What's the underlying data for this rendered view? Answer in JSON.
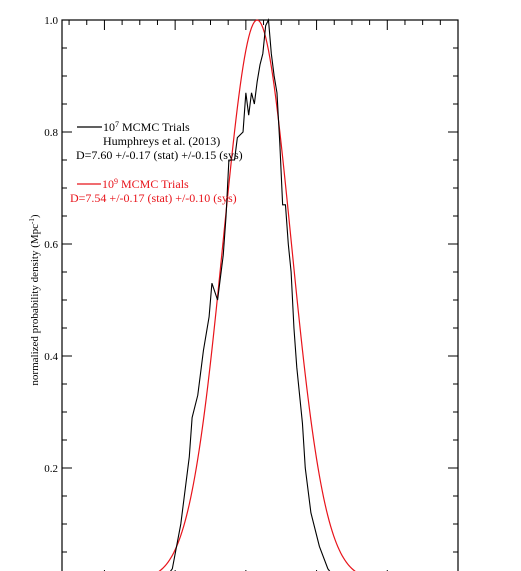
{
  "chart_data": {
    "type": "line",
    "title": "",
    "xlabel": "",
    "ylabel": "normalized probability density (Mpc",
    "ylabel_sup": "-1",
    "ylabel_close": ")",
    "ylim": [
      0,
      1.0
    ],
    "xlim": [
      6.85,
      8.25
    ],
    "y_ticks": [
      "0.2",
      "0.4",
      "0.6",
      "0.8",
      "1.0"
    ],
    "y_tick_values": [
      0.2,
      0.4,
      0.6,
      0.8,
      1.0
    ],
    "grid": false,
    "legend_position": "upper-left",
    "series": [
      {
        "name": "10^7 MCMC Trials",
        "color": "#000000",
        "x": [
          7.21,
          7.24,
          7.27,
          7.3,
          7.31,
          7.33,
          7.35,
          7.37,
          7.38,
          7.4,
          7.42,
          7.43,
          7.44,
          7.46,
          7.47,
          7.49,
          7.5,
          7.51,
          7.52,
          7.53,
          7.54,
          7.55,
          7.56,
          7.57,
          7.58,
          7.59,
          7.6,
          7.61,
          7.62,
          7.63,
          7.64,
          7.65,
          7.66,
          7.67,
          7.68,
          7.7,
          7.71,
          7.73,
          7.76,
          7.79,
          7.82,
          7.85,
          7.88,
          7.91
        ],
        "values": [
          0.0,
          0.02,
          0.1,
          0.22,
          0.29,
          0.33,
          0.41,
          0.47,
          0.53,
          0.5,
          0.58,
          0.65,
          0.75,
          0.75,
          0.79,
          0.8,
          0.87,
          0.83,
          0.87,
          0.85,
          0.89,
          0.92,
          0.94,
          0.99,
          1.0,
          0.94,
          0.9,
          0.87,
          0.78,
          0.67,
          0.67,
          0.6,
          0.55,
          0.45,
          0.38,
          0.28,
          0.2,
          0.12,
          0.06,
          0.02,
          0.0,
          0.0,
          0.0,
          0.0
        ]
      },
      {
        "name": "10^9 MCMC Trials",
        "color": "#e8141b",
        "mean": 7.54,
        "sigma": 0.12,
        "x_range": [
          7.14,
          7.94
        ]
      }
    ],
    "annotations": [
      {
        "color": "#000000",
        "label_base": "10",
        "label_exp": "7",
        "label_rest": " MCMC Trials",
        "line2": "Humphreys et al. (2013)",
        "line3": "D=7.60 +/-0.17 (stat) +/-0.15 (sys)"
      },
      {
        "color": "#e8141b",
        "label_base": "10",
        "label_exp": "9",
        "label_rest": " MCMC Trials",
        "line3": "D=7.54 +/-0.17 (stat) +/-0.10 (sys)"
      }
    ]
  }
}
